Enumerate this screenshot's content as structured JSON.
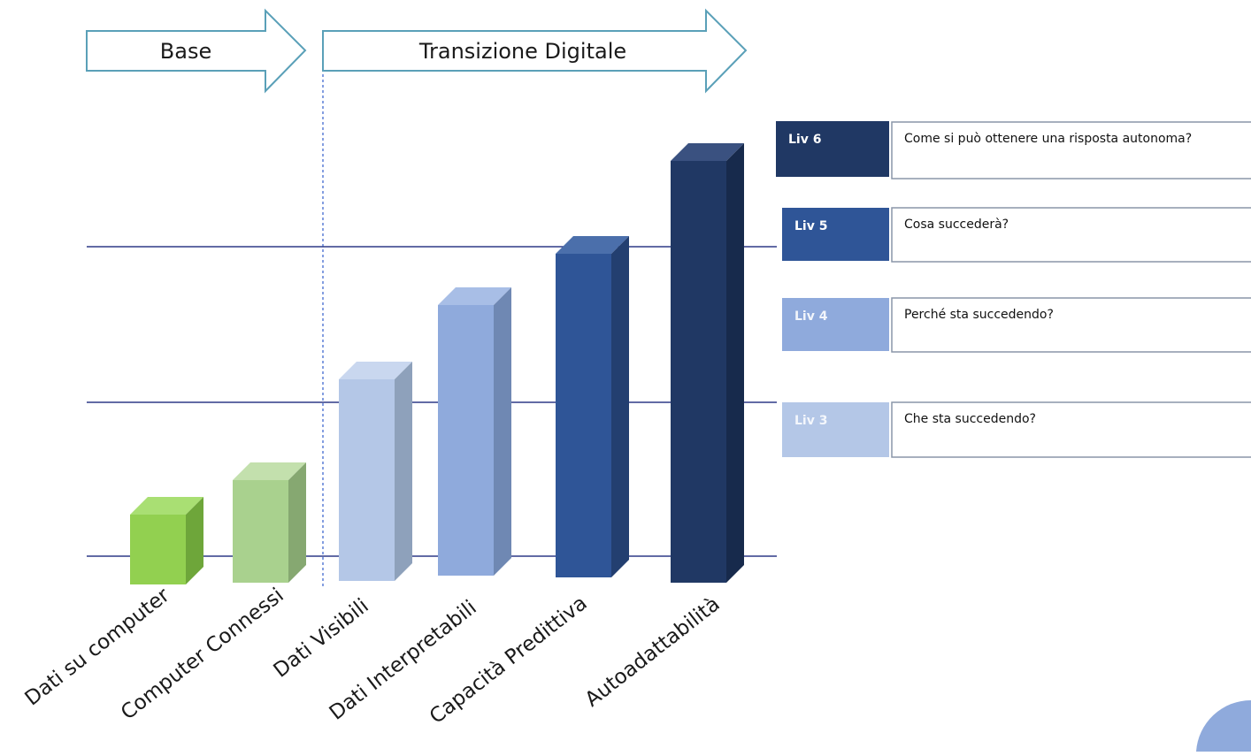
{
  "phases": [
    {
      "label": "Base"
    },
    {
      "label": "Transizione Digitale"
    }
  ],
  "categories": [
    {
      "label": "Dati su computer",
      "level": 1,
      "front": "#92d050",
      "top": "#a9df73",
      "side": "#6ea63a"
    },
    {
      "label": "Computer Connessi",
      "level": 2,
      "front": "#a9d18e",
      "top": "#c3e0ad",
      "side": "#86a871"
    },
    {
      "label": "Dati Visibili",
      "level": 3,
      "front": "#b4c7e7",
      "top": "#c9d7ef",
      "side": "#8ea1bb"
    },
    {
      "label": "Dati Interpretabili",
      "level": 4,
      "front": "#8faadc",
      "top": "#a8bee6",
      "side": "#6f88b3"
    },
    {
      "label": "Capacità Predittiva",
      "level": 5,
      "front": "#2f5597",
      "top": "#4b6fab",
      "side": "#233f70"
    },
    {
      "label": "Autoadattabilità",
      "level": 6,
      "front": "#203864",
      "top": "#3a5180",
      "side": "#172a4c"
    }
  ],
  "levels": [
    {
      "label": "Liv 6",
      "question": "Come si può ottenere una risposta autonoma?",
      "color": "#203864",
      "text_color": "#ffffff"
    },
    {
      "label": "Liv 5",
      "question": "Cosa succederà?",
      "color": "#2f5597",
      "text_color": "#ffffff"
    },
    {
      "label": "Liv 4",
      "question": "Perché sta succedendo?",
      "color": "#8faadc",
      "text_color": "#f2f5fb"
    },
    {
      "label": "Liv 3",
      "question": "Che sta succedendo?",
      "color": "#b4c7e7",
      "text_color": "#f4f7fc"
    }
  ],
  "colors": {
    "arrow_stroke": "#5aa0b8",
    "gridline": "#2e3a87",
    "divider": "#5b7fd6",
    "box_border": "#8a96a8"
  }
}
